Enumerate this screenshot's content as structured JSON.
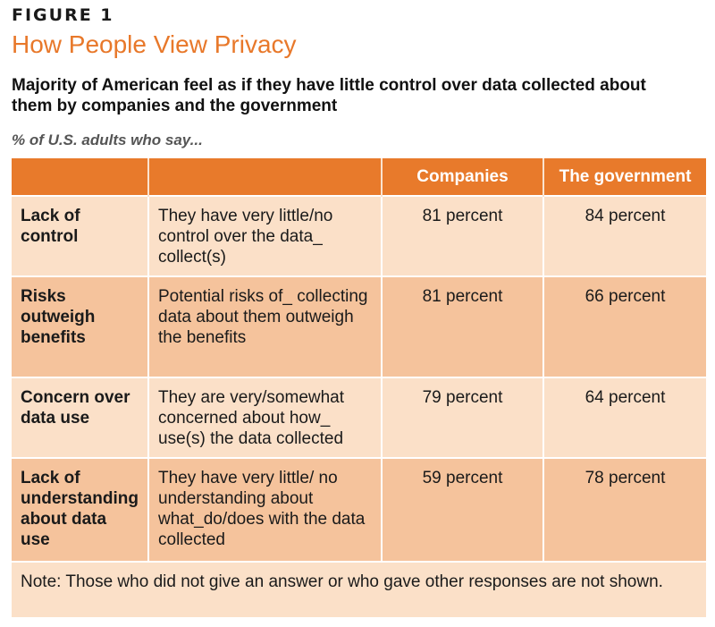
{
  "figure": {
    "label": "FIGURE 1",
    "title": "How People View Privacy",
    "subtitle": "Majority of American feel as if they have little control over data collected about them by companies and the government",
    "caption": "% of U.S. adults who say...",
    "note": "Note: Those who did not give an answer or who gave other responses are not shown."
  },
  "chart_data": {
    "type": "table",
    "columns": [
      "",
      "",
      "Companies",
      "The government"
    ],
    "rows": [
      {
        "category": "Lack of control",
        "description": "They have very little/no control over the data_ collect(s)",
        "companies": "81 percent",
        "government": "84 percent"
      },
      {
        "category": "Risks outweigh benefits",
        "description": "Potential risks of_ collecting data about them outweigh the benefits",
        "companies": "81 percent",
        "government": "66 percent"
      },
      {
        "category": "Concern over data use",
        "description": "They are very/somewhat concerned about how_ use(s) the data collected",
        "companies": "79 percent",
        "government": "64 percent"
      },
      {
        "category": "Lack of understanding about data use",
        "description": "They have very little/ no understanding about what_do/does with the data collected",
        "companies": "59 percent",
        "government": "78 percent"
      }
    ]
  },
  "colors": {
    "accent": "#e87a2b",
    "row_light": "#fbe0c8",
    "row_dark": "#f5c39c"
  }
}
